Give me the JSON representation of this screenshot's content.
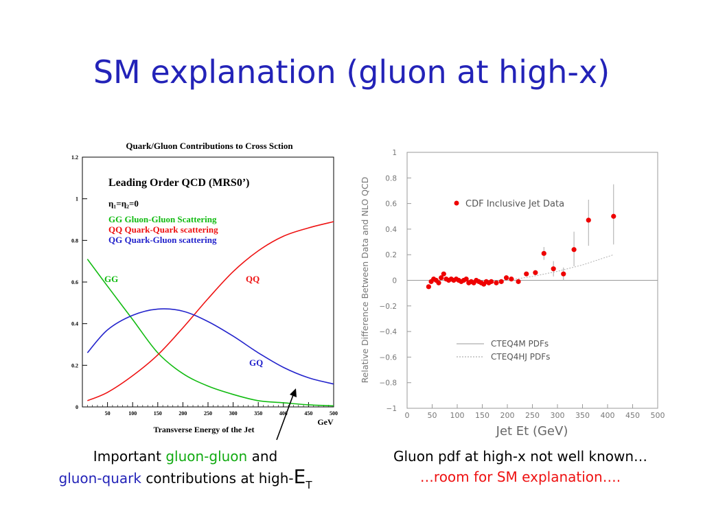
{
  "slide": {
    "title": "SM explanation (gluon at high-x)"
  },
  "captions": {
    "left_line1_a": "Important ",
    "left_line1_b": "gluon-gluon",
    "left_line1_c": " and",
    "left_line2_a": "gluon-quark",
    "left_line2_b": " contributions at high-",
    "left_line2_e": "E",
    "left_line2_sub": "T",
    "right_line1": "Gluon pdf at high-x not well known…",
    "right_line2": "…room for SM explanation…."
  },
  "colors": {
    "title": "#2323b8",
    "gg": "#11bb11",
    "qq": "#ee1111",
    "qg": "#2323cc",
    "cdf_points": "#ee0000"
  },
  "chart_data": [
    {
      "type": "line",
      "title": "Quark/Gluon Contributions to Cross Sction",
      "xlabel": "Transverse Energy of the Jet",
      "xunit": "GeV",
      "ylabel": "",
      "xlim": [
        0,
        500
      ],
      "ylim": [
        0,
        1.2
      ],
      "xticks": [
        50,
        100,
        150,
        200,
        250,
        300,
        350,
        400,
        450,
        500
      ],
      "yticks": [
        0,
        0.2,
        0.4,
        0.6,
        0.8,
        1,
        1.2
      ],
      "ytick_labels": [
        "0",
        "0.2",
        "0.4",
        "0.6",
        "0.8",
        "1",
        "1.2"
      ],
      "annotations": {
        "heading": "Leading Order QCD (MRS0’)",
        "eta": "η₁=η₂=0",
        "legend_gg": "GG  Gluon-Gluon Scattering",
        "legend_qq": "QQ  Quark-Quark scattering",
        "legend_qg": "QG  Quark-Gluon scattering",
        "label_gg": "GG",
        "label_qq": "QQ",
        "label_gq": "GQ"
      },
      "series": [
        {
          "name": "GG",
          "x": [
            10,
            50,
            100,
            150,
            200,
            250,
            300,
            350,
            400,
            450,
            500
          ],
          "values": [
            0.71,
            0.58,
            0.42,
            0.26,
            0.16,
            0.1,
            0.06,
            0.03,
            0.02,
            0.01,
            0.005
          ]
        },
        {
          "name": "QQ",
          "x": [
            10,
            50,
            100,
            150,
            200,
            250,
            300,
            350,
            400,
            450,
            500
          ],
          "values": [
            0.03,
            0.07,
            0.15,
            0.25,
            0.38,
            0.52,
            0.65,
            0.75,
            0.82,
            0.86,
            0.89
          ]
        },
        {
          "name": "QG",
          "x": [
            10,
            50,
            100,
            150,
            200,
            250,
            300,
            350,
            400,
            450,
            500
          ],
          "values": [
            0.26,
            0.37,
            0.44,
            0.47,
            0.46,
            0.41,
            0.34,
            0.26,
            0.19,
            0.14,
            0.11
          ]
        }
      ]
    },
    {
      "type": "scatter",
      "title": "",
      "xlabel": "Jet Et (GeV)",
      "ylabel": "Relative Difference Between Data and NLO QCD",
      "xlim": [
        0,
        500
      ],
      "ylim": [
        -1,
        1
      ],
      "xticks": [
        0,
        50,
        100,
        150,
        200,
        250,
        300,
        350,
        400,
        450,
        500
      ],
      "yticks": [
        -1,
        -0.8,
        -0.6,
        -0.4,
        -0.2,
        0,
        0.2,
        0.4,
        0.6,
        0.8,
        1
      ],
      "ytick_labels": [
        "−1",
        "−0.8",
        "−0.6",
        "−0.4",
        "−0.2",
        "0",
        "0.2",
        "0.4",
        "0.6",
        "0.8",
        "1"
      ],
      "legend": {
        "points": "CDF Inclusive Jet Data",
        "solid": "CTEQ4M PDFs",
        "dashed": "CTEQ4HJ PDFs"
      },
      "series": [
        {
          "name": "CDF Inclusive Jet Data",
          "x": [
            43,
            48,
            53,
            58,
            63,
            68,
            73,
            78,
            83,
            88,
            93,
            98,
            103,
            108,
            113,
            118,
            123,
            128,
            133,
            138,
            143,
            148,
            153,
            158,
            163,
            168,
            178,
            188,
            198,
            208,
            222,
            238,
            256,
            273,
            292,
            312,
            333,
            362,
            412
          ],
          "values": [
            -0.05,
            -0.01,
            0.01,
            0.0,
            -0.02,
            0.02,
            0.05,
            0.01,
            0.0,
            0.01,
            0.0,
            0.01,
            0.0,
            -0.01,
            0.0,
            0.01,
            -0.02,
            -0.01,
            -0.02,
            0.0,
            -0.01,
            -0.02,
            -0.03,
            -0.01,
            -0.02,
            -0.01,
            -0.02,
            -0.01,
            0.02,
            0.01,
            -0.01,
            0.05,
            0.06,
            0.21,
            0.09,
            0.05,
            0.24,
            0.47,
            0.5
          ],
          "err_low": [
            0,
            0,
            0,
            0,
            0,
            0,
            0,
            0,
            0,
            0,
            0,
            0,
            0,
            0,
            0,
            0,
            0,
            0,
            0,
            0,
            0,
            0,
            0,
            0,
            0,
            0,
            0,
            0,
            0,
            0,
            0,
            0,
            0.02,
            0.05,
            0.06,
            0.05,
            0.13,
            0.2,
            0.22
          ],
          "err_high": [
            0,
            0,
            0,
            0,
            0,
            0,
            0,
            0,
            0,
            0,
            0,
            0,
            0,
            0,
            0,
            0,
            0,
            0,
            0,
            0,
            0,
            0,
            0,
            0,
            0,
            0,
            0,
            0,
            0,
            0,
            0,
            0,
            0.02,
            0.05,
            0.06,
            0.05,
            0.14,
            0.16,
            0.25
          ]
        },
        {
          "name": "CTEQ4M PDFs",
          "style": "solid",
          "x": [
            0,
            500
          ],
          "values": [
            0,
            0
          ]
        },
        {
          "name": "CTEQ4HJ PDFs",
          "style": "dashed",
          "x": [
            200,
            250,
            300,
            350,
            412
          ],
          "values": [
            0.0,
            0.03,
            0.07,
            0.12,
            0.2
          ]
        }
      ]
    }
  ]
}
